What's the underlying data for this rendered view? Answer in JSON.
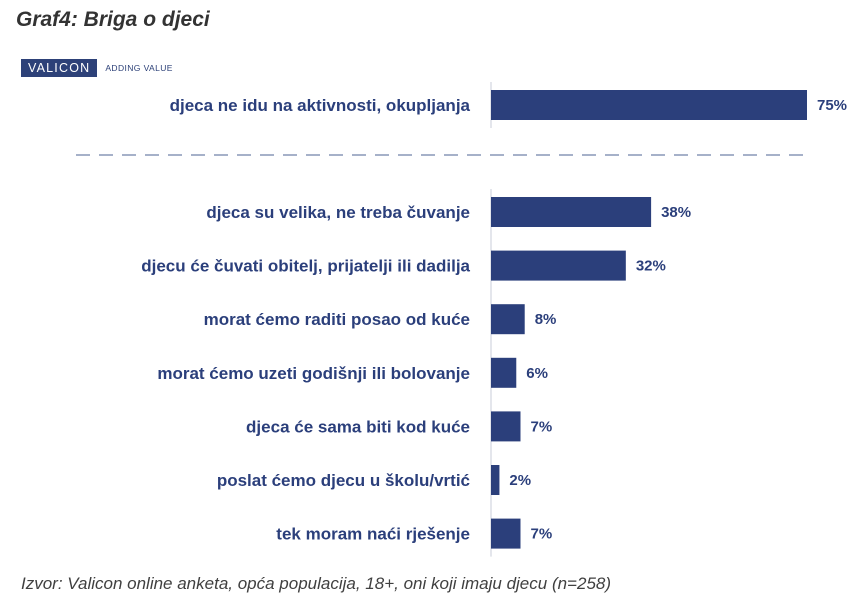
{
  "title": "Graf4: Briga o djeci",
  "logo": {
    "name": "VALICON",
    "tagline": "ADDING VALUE"
  },
  "source": "Izvor: Valicon online anketa, opća populacija, 18+, oni koji imaju djecu (n=258)",
  "colors": {
    "bar": "#2b3f7b",
    "label": "#2b3f7b",
    "value": "#2b3f7b",
    "axis": "#c8cdd8",
    "divider": "#a6b1c9"
  },
  "chart_data": {
    "type": "bar",
    "orientation": "horizontal",
    "unit": "%",
    "xlim": [
      0,
      75
    ],
    "grid": false,
    "legend": "none",
    "groups": [
      {
        "categories": [
          "djeca ne idu na aktivnosti, okupljanja"
        ],
        "values": [
          75
        ],
        "value_labels": [
          "75%"
        ]
      },
      {
        "categories": [
          "djeca su velika, ne treba čuvanje",
          "djecu će čuvati obitelj, prijatelji ili dadilja",
          "morat ćemo raditi posao od kuće",
          "morat ćemo uzeti godišnji ili bolovanje",
          "djeca će sama biti kod kuće",
          "poslat ćemo djecu u školu/vrtić",
          "tek moram naći rješenje"
        ],
        "values": [
          38,
          32,
          8,
          6,
          7,
          2,
          7
        ],
        "value_labels": [
          "38%",
          "32%",
          "8%",
          "6%",
          "7%",
          "2%",
          "7%"
        ]
      }
    ]
  }
}
